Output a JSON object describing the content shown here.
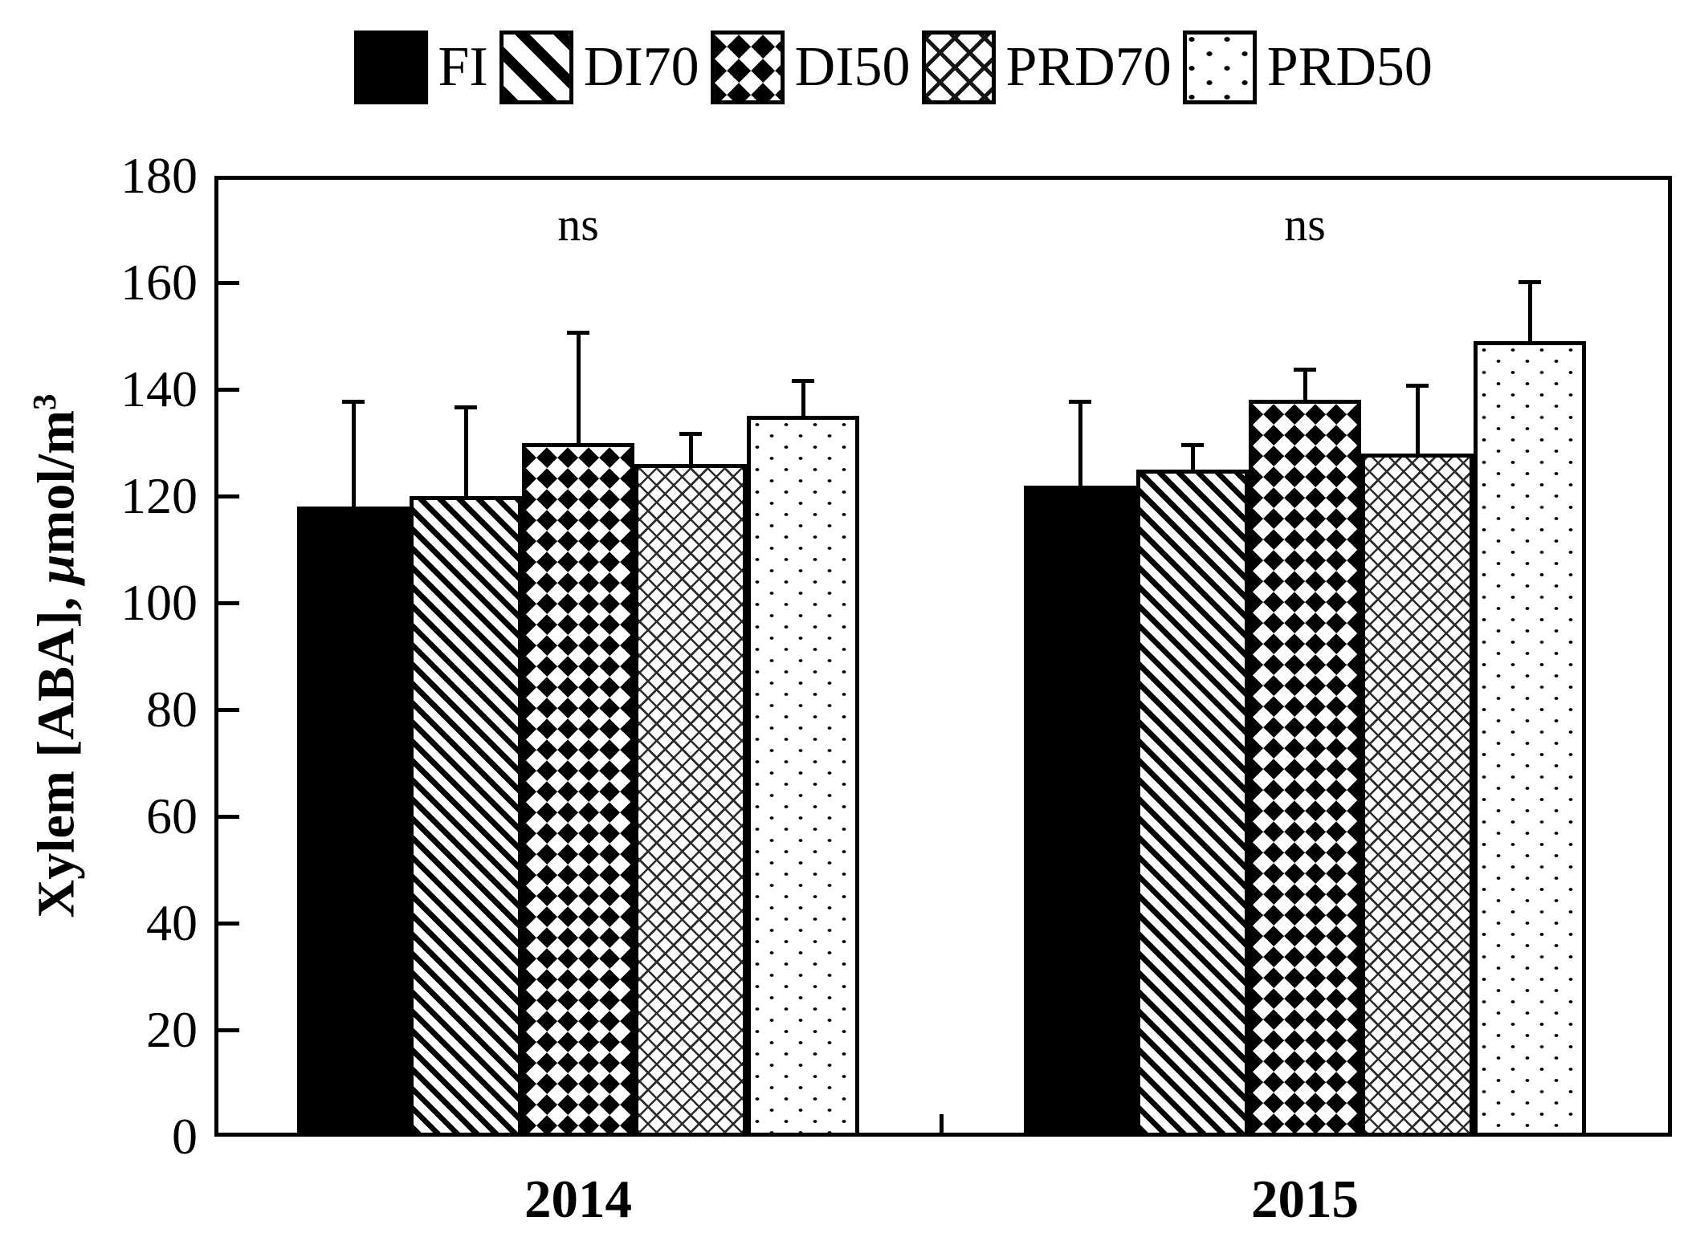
{
  "figure": {
    "background": "#ffffff",
    "ink": "#000000"
  },
  "legend": {
    "items": [
      {
        "label": "FI",
        "pattern": "solid"
      },
      {
        "label": "DI70",
        "pattern": "stripes"
      },
      {
        "label": "DI50",
        "pattern": "diamonds"
      },
      {
        "label": "PRD70",
        "pattern": "crosshatch"
      },
      {
        "label": "PRD50",
        "pattern": "dots"
      }
    ]
  },
  "y_axis": {
    "title_prefix": "Xylem [ABA], ",
    "title_mu": "μ",
    "title_unit": "mol/m",
    "title_sup": "3",
    "tick_values": [
      0,
      20,
      40,
      60,
      80,
      100,
      120,
      140,
      160,
      180
    ],
    "min": 0,
    "max": 180
  },
  "x_axis": {
    "categories": [
      "2014",
      "2015"
    ]
  },
  "chart_data": {
    "type": "bar",
    "categories": [
      "2014",
      "2015"
    ],
    "series": [
      {
        "name": "FI",
        "pattern": "solid",
        "values": [
          118,
          122
        ],
        "errors_plus": [
          20,
          16
        ]
      },
      {
        "name": "DI70",
        "pattern": "stripes",
        "values": [
          120,
          125
        ],
        "errors_plus": [
          17,
          5
        ]
      },
      {
        "name": "DI50",
        "pattern": "diamonds",
        "values": [
          130,
          138
        ],
        "errors_plus": [
          21,
          6
        ]
      },
      {
        "name": "PRD70",
        "pattern": "crosshatch",
        "values": [
          126,
          128
        ],
        "errors_plus": [
          6,
          13
        ]
      },
      {
        "name": "PRD50",
        "pattern": "dots",
        "values": [
          135,
          149
        ],
        "errors_plus": [
          7,
          11.5
        ]
      }
    ],
    "title": "",
    "xlabel": "",
    "ylabel": "Xylem [ABA], μmol/m³",
    "ylim": [
      0,
      180
    ],
    "y_tick_step": 20,
    "grid": false,
    "legend_position": "top",
    "error_bars": "upper_only",
    "annotations": [
      {
        "text": "ns",
        "category": "2014"
      },
      {
        "text": "ns",
        "category": "2015"
      }
    ]
  }
}
